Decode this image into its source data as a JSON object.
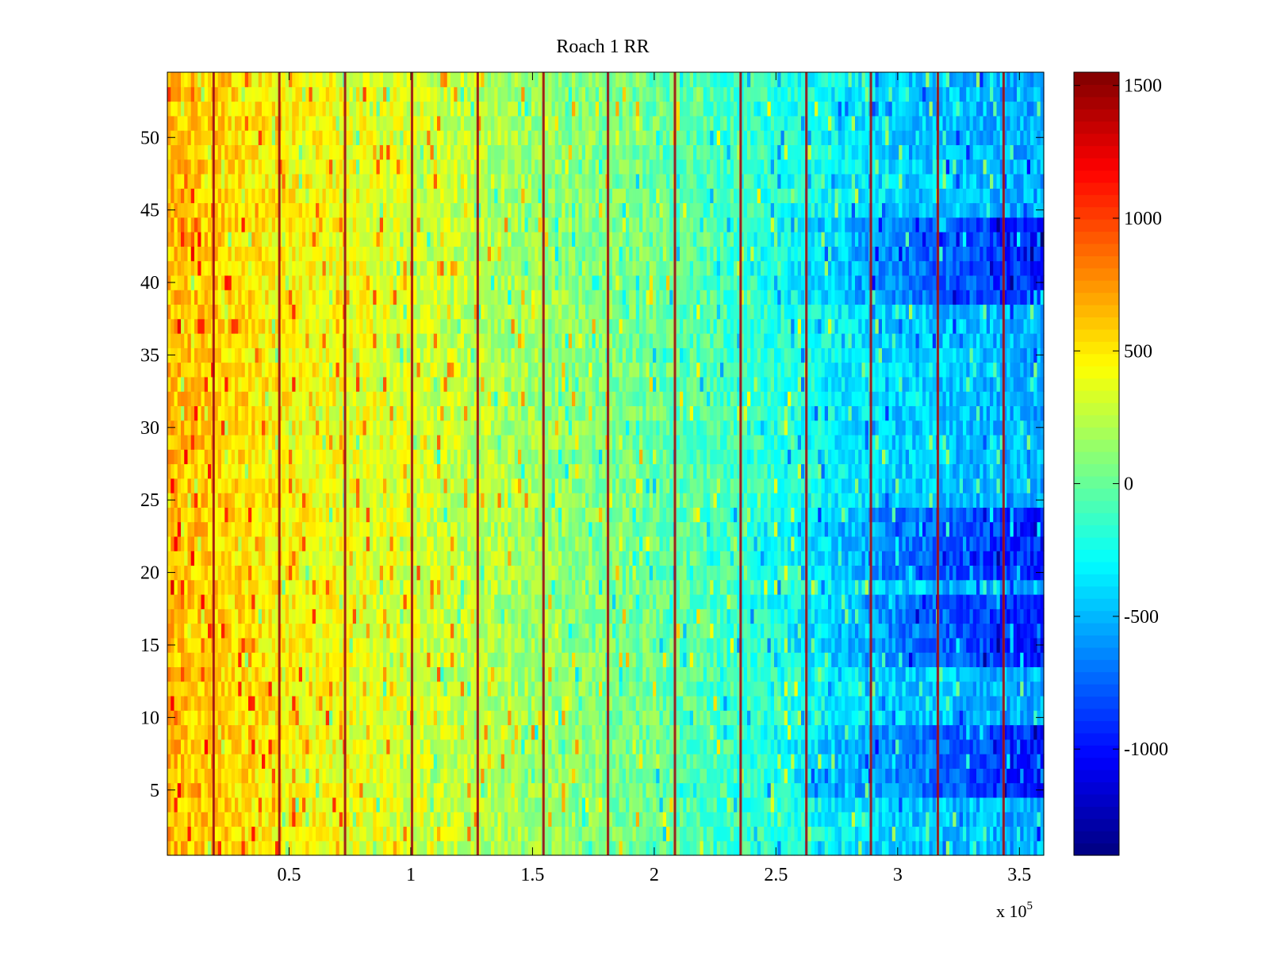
{
  "chart_data": {
    "type": "heatmap",
    "title": "Roach 1 RR",
    "xlabel": "",
    "ylabel": "",
    "x_scale_label": "x 10",
    "x_scale_exponent": "5",
    "xlim": [
      0,
      3.6
    ],
    "ylim": [
      0.5,
      54.5
    ],
    "x_ticks": [
      0.5,
      1,
      1.5,
      2,
      2.5,
      3,
      3.5
    ],
    "x_tick_labels": [
      "0.5",
      "1",
      "1.5",
      "2",
      "2.5",
      "3",
      "3.5"
    ],
    "y_ticks": [
      5,
      10,
      15,
      20,
      25,
      30,
      35,
      40,
      45,
      50
    ],
    "y_tick_labels": [
      "5",
      "10",
      "15",
      "20",
      "25",
      "30",
      "35",
      "40",
      "45",
      "50"
    ],
    "colorbar": {
      "colormap": "jet",
      "clim": [
        -1400,
        1550
      ],
      "ticks": [
        -1000,
        -500,
        0,
        500,
        1000,
        1500
      ],
      "tick_labels": [
        "-1000",
        "-500",
        "0",
        "500",
        "1000",
        "1500"
      ]
    },
    "rows": 54,
    "trend": {
      "description": "mean value per x-region (x in units of 1e5)",
      "x": [
        0.0,
        0.5,
        1.0,
        1.5,
        2.0,
        2.5,
        3.0,
        3.5
      ],
      "mean": [
        650,
        460,
        330,
        160,
        20,
        -180,
        -420,
        -520
      ]
    },
    "bright_stripes_x": [
      0.19,
      0.46,
      0.73,
      1.005,
      1.275,
      1.545,
      1.81,
      2.085,
      2.355,
      2.625,
      2.89,
      3.165,
      3.435
    ],
    "dark_bands_y": [
      [
        4.5,
        9.5
      ],
      [
        13.5,
        18.5
      ],
      [
        19.5,
        24.5
      ],
      [
        38.5,
        44.5
      ]
    ]
  },
  "colors": {
    "axis": "#000000",
    "background": "#ffffff"
  }
}
